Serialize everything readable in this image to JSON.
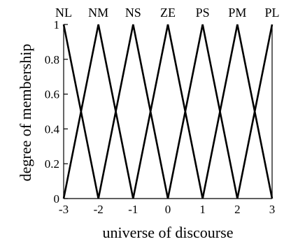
{
  "chart_data": {
    "type": "line",
    "title": "",
    "xlabel": "universe of discourse",
    "ylabel": "degree of membership",
    "xlim": [
      -3,
      3
    ],
    "ylim": [
      0,
      1
    ],
    "xticks": [
      "-3",
      "-2",
      "-1",
      "0",
      "1",
      "2",
      "3"
    ],
    "yticks": [
      "0",
      "0.2",
      "0.4",
      "0.6",
      "0.8",
      "1"
    ],
    "grid": false,
    "legend": "none",
    "series": [
      {
        "name": "NL",
        "x": [
          -3,
          -2
        ],
        "y": [
          1,
          0
        ]
      },
      {
        "name": "NM",
        "x": [
          -3,
          -2,
          -1
        ],
        "y": [
          0,
          1,
          0
        ]
      },
      {
        "name": "NS",
        "x": [
          -2,
          -1,
          0
        ],
        "y": [
          0,
          1,
          0
        ]
      },
      {
        "name": "ZE",
        "x": [
          -1,
          0,
          1
        ],
        "y": [
          0,
          1,
          0
        ]
      },
      {
        "name": "PS",
        "x": [
          0,
          1,
          2
        ],
        "y": [
          0,
          1,
          0
        ]
      },
      {
        "name": "PM",
        "x": [
          1,
          2,
          3
        ],
        "y": [
          0,
          1,
          0
        ]
      },
      {
        "name": "PL",
        "x": [
          2,
          3
        ],
        "y": [
          0,
          1
        ]
      }
    ],
    "colors": {
      "line": "#000000",
      "axis": "#000000"
    }
  }
}
